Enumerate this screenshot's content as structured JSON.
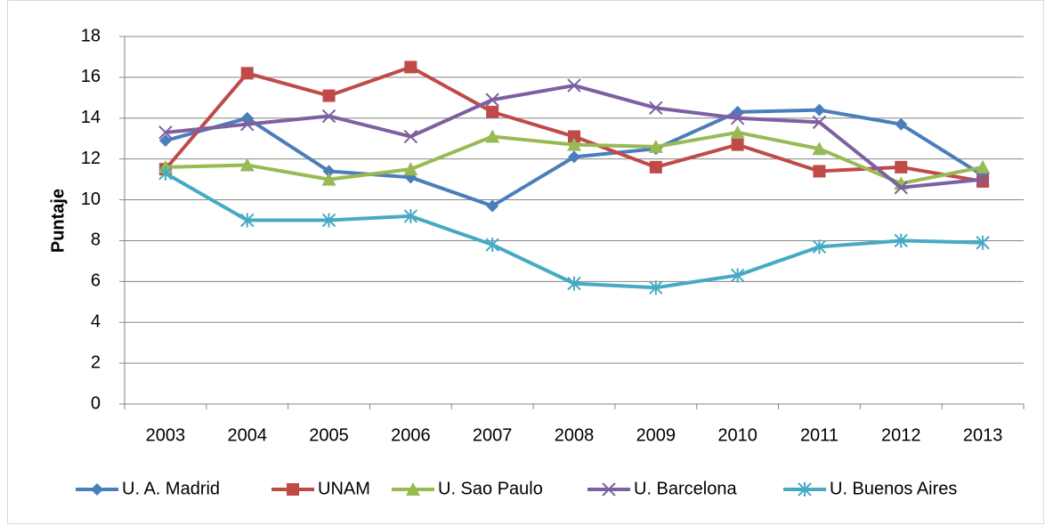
{
  "chart_data": {
    "type": "line",
    "y_label": "Puntaje",
    "categories": [
      "2003",
      "2004",
      "2005",
      "2006",
      "2007",
      "2008",
      "2009",
      "2010",
      "2011",
      "2012",
      "2013"
    ],
    "series": [
      {
        "name": "U. A. Madrid",
        "color": "#4a7ebb",
        "marker": "diamond",
        "values": [
          12.9,
          14.0,
          11.4,
          11.1,
          9.7,
          12.1,
          12.5,
          14.3,
          14.4,
          13.7,
          11.2
        ]
      },
      {
        "name": "UNAM",
        "color": "#be4b48",
        "marker": "square",
        "values": [
          11.5,
          16.2,
          15.1,
          16.5,
          14.3,
          13.1,
          11.6,
          12.7,
          11.4,
          11.6,
          10.9
        ]
      },
      {
        "name": "U. Sao Paulo",
        "color": "#98b954",
        "marker": "triangle",
        "values": [
          11.6,
          11.7,
          11.0,
          11.5,
          13.1,
          12.7,
          12.6,
          13.3,
          12.5,
          10.8,
          11.6
        ]
      },
      {
        "name": "U. Barcelona",
        "color": "#7d60a0",
        "marker": "x",
        "values": [
          13.3,
          13.7,
          14.1,
          13.1,
          14.9,
          15.6,
          14.5,
          14.0,
          13.8,
          10.6,
          11.0
        ]
      },
      {
        "name": "U. Buenos Aires",
        "color": "#46aac5",
        "marker": "star",
        "values": [
          11.3,
          9.0,
          9.0,
          9.2,
          7.8,
          5.9,
          5.7,
          6.3,
          7.7,
          8.0,
          7.9
        ]
      }
    ],
    "ylim": [
      0,
      18
    ],
    "yticks": [
      0,
      2,
      4,
      6,
      8,
      10,
      12,
      14,
      16,
      18
    ],
    "grid": true,
    "legend": "bottom"
  }
}
